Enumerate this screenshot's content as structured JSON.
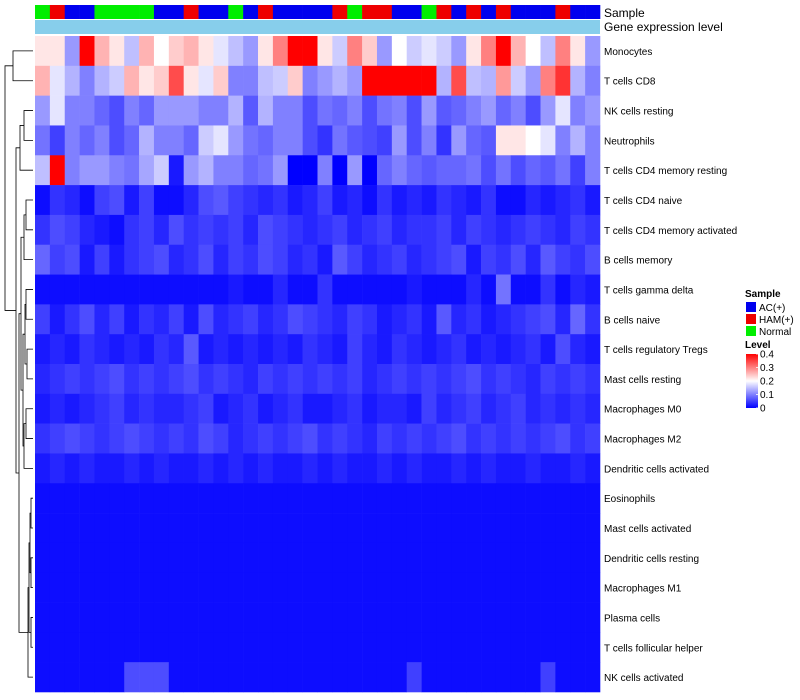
{
  "chart_data": {
    "type": "heatmap",
    "title": "",
    "annotation_labels": {
      "sample": "Sample",
      "gene_expression": "Gene expression level"
    },
    "rows": [
      "Monocytes",
      "T cells CD8",
      "NK cells resting",
      "Neutrophils",
      "T cells CD4 memory resting",
      "T cells CD4 naive",
      "T cells CD4 memory activated",
      "B cells memory",
      "T cells gamma delta",
      "B cells naive",
      "T cells regulatory  Tregs",
      "Mast cells resting",
      "Macrophages M0",
      "Macrophages M2",
      "Dendritic cells activated",
      "Eosinophils",
      "Mast cells activated",
      "Dendritic cells resting",
      "Macrophages M1",
      "Plasma cells",
      "T cells follicular helper",
      "NK cells activated"
    ],
    "sample_groups": [
      "N",
      "H",
      "A",
      "A",
      "N",
      "N",
      "N",
      "N",
      "A",
      "A",
      "H",
      "A",
      "A",
      "N",
      "A",
      "H",
      "A",
      "A",
      "A",
      "A",
      "H",
      "N",
      "H",
      "H",
      "A",
      "A",
      "N",
      "H",
      "A",
      "H",
      "A",
      "H",
      "A",
      "A",
      "A",
      "H",
      "A",
      "A"
    ],
    "values": [
      [
        0.22,
        0.22,
        0.12,
        0.4,
        0.26,
        0.22,
        0.15,
        0.26,
        0.2,
        0.24,
        0.26,
        0.22,
        0.18,
        0.15,
        0.12,
        0.22,
        0.3,
        0.4,
        0.4,
        0.22,
        0.16,
        0.3,
        0.24,
        0.12,
        0.2,
        0.16,
        0.18,
        0.16,
        0.12,
        0.22,
        0.3,
        0.4,
        0.26,
        0.2,
        0.15,
        0.3,
        0.22,
        0.12
      ],
      [
        0.26,
        0.18,
        0.14,
        0.1,
        0.14,
        0.16,
        0.26,
        0.22,
        0.24,
        0.34,
        0.22,
        0.18,
        0.24,
        0.1,
        0.1,
        0.15,
        0.16,
        0.24,
        0.1,
        0.12,
        0.14,
        0.12,
        0.4,
        0.4,
        0.4,
        0.4,
        0.4,
        0.14,
        0.34,
        0.15,
        0.14,
        0.28,
        0.16,
        0.12,
        0.3,
        0.36,
        0.14,
        0.1
      ],
      [
        0.12,
        0.18,
        0.1,
        0.1,
        0.08,
        0.06,
        0.1,
        0.08,
        0.12,
        0.12,
        0.12,
        0.1,
        0.1,
        0.14,
        0.07,
        0.14,
        0.1,
        0.1,
        0.06,
        0.09,
        0.08,
        0.1,
        0.06,
        0.09,
        0.1,
        0.06,
        0.12,
        0.07,
        0.08,
        0.1,
        0.12,
        0.08,
        0.1,
        0.06,
        0.12,
        0.18,
        0.1,
        0.12
      ],
      [
        0.09,
        0.05,
        0.1,
        0.08,
        0.1,
        0.06,
        0.08,
        0.14,
        0.1,
        0.1,
        0.08,
        0.16,
        0.18,
        0.12,
        0.09,
        0.08,
        0.1,
        0.1,
        0.06,
        0.04,
        0.09,
        0.07,
        0.06,
        0.05,
        0.12,
        0.06,
        0.1,
        0.04,
        0.12,
        0.08,
        0.07,
        0.22,
        0.22,
        0.2,
        0.18,
        0.1,
        0.14,
        0.1
      ],
      [
        0.15,
        0.4,
        0.1,
        0.12,
        0.12,
        0.1,
        0.09,
        0.13,
        0.16,
        0.02,
        0.12,
        0.14,
        0.1,
        0.1,
        0.08,
        0.09,
        0.12,
        0.0,
        0.0,
        0.1,
        0.0,
        0.12,
        0.0,
        0.08,
        0.1,
        0.08,
        0.07,
        0.08,
        0.08,
        0.09,
        0.06,
        0.09,
        0.06,
        0.08,
        0.07,
        0.09,
        0.05,
        0.1
      ],
      [
        0.01,
        0.04,
        0.03,
        0.01,
        0.05,
        0.06,
        0.02,
        0.05,
        0.01,
        0.01,
        0.03,
        0.06,
        0.07,
        0.05,
        0.04,
        0.03,
        0.04,
        0.02,
        0.03,
        0.05,
        0.02,
        0.03,
        0.01,
        0.04,
        0.02,
        0.03,
        0.02,
        0.04,
        0.03,
        0.02,
        0.04,
        0.01,
        0.01,
        0.03,
        0.02,
        0.03,
        0.04,
        0.02
      ],
      [
        0.04,
        0.06,
        0.05,
        0.03,
        0.02,
        0.01,
        0.04,
        0.05,
        0.03,
        0.06,
        0.04,
        0.05,
        0.04,
        0.05,
        0.03,
        0.06,
        0.05,
        0.04,
        0.03,
        0.04,
        0.05,
        0.03,
        0.04,
        0.05,
        0.03,
        0.04,
        0.04,
        0.05,
        0.03,
        0.05,
        0.04,
        0.03,
        0.04,
        0.05,
        0.04,
        0.03,
        0.05,
        0.04
      ],
      [
        0.08,
        0.05,
        0.06,
        0.02,
        0.05,
        0.02,
        0.04,
        0.05,
        0.06,
        0.03,
        0.04,
        0.06,
        0.03,
        0.05,
        0.04,
        0.06,
        0.05,
        0.03,
        0.04,
        0.02,
        0.07,
        0.05,
        0.03,
        0.04,
        0.05,
        0.03,
        0.04,
        0.05,
        0.06,
        0.02,
        0.05,
        0.04,
        0.06,
        0.03,
        0.07,
        0.05,
        0.04,
        0.06
      ],
      [
        0.01,
        0.01,
        0.01,
        0.01,
        0.01,
        0.01,
        0.01,
        0.01,
        0.01,
        0.01,
        0.01,
        0.01,
        0.01,
        0.02,
        0.01,
        0.01,
        0.03,
        0.01,
        0.01,
        0.04,
        0.01,
        0.01,
        0.01,
        0.01,
        0.01,
        0.02,
        0.01,
        0.01,
        0.01,
        0.03,
        0.01,
        0.09,
        0.01,
        0.01,
        0.04,
        0.01,
        0.03,
        0.02
      ],
      [
        0.05,
        0.02,
        0.04,
        0.06,
        0.03,
        0.05,
        0.02,
        0.04,
        0.03,
        0.05,
        0.02,
        0.06,
        0.03,
        0.04,
        0.05,
        0.03,
        0.04,
        0.06,
        0.05,
        0.04,
        0.03,
        0.05,
        0.04,
        0.02,
        0.03,
        0.04,
        0.02,
        0.07,
        0.03,
        0.04,
        0.02,
        0.03,
        0.04,
        0.05,
        0.06,
        0.03,
        0.08,
        0.04
      ],
      [
        0.02,
        0.03,
        0.02,
        0.04,
        0.03,
        0.02,
        0.03,
        0.02,
        0.04,
        0.03,
        0.07,
        0.02,
        0.03,
        0.02,
        0.03,
        0.02,
        0.03,
        0.02,
        0.04,
        0.03,
        0.02,
        0.05,
        0.03,
        0.02,
        0.04,
        0.03,
        0.02,
        0.03,
        0.04,
        0.02,
        0.03,
        0.02,
        0.03,
        0.04,
        0.02,
        0.06,
        0.03,
        0.02
      ],
      [
        0.03,
        0.04,
        0.05,
        0.04,
        0.05,
        0.06,
        0.04,
        0.05,
        0.04,
        0.05,
        0.06,
        0.04,
        0.05,
        0.04,
        0.03,
        0.05,
        0.04,
        0.05,
        0.04,
        0.05,
        0.04,
        0.05,
        0.03,
        0.04,
        0.05,
        0.04,
        0.05,
        0.04,
        0.05,
        0.06,
        0.04,
        0.05,
        0.04,
        0.03,
        0.05,
        0.04,
        0.05,
        0.04
      ],
      [
        0.02,
        0.03,
        0.02,
        0.03,
        0.04,
        0.05,
        0.03,
        0.04,
        0.03,
        0.03,
        0.04,
        0.05,
        0.02,
        0.03,
        0.04,
        0.02,
        0.03,
        0.04,
        0.02,
        0.02,
        0.03,
        0.04,
        0.02,
        0.03,
        0.03,
        0.02,
        0.05,
        0.03,
        0.04,
        0.05,
        0.03,
        0.04,
        0.05,
        0.03,
        0.04,
        0.03,
        0.04,
        0.03
      ],
      [
        0.04,
        0.05,
        0.06,
        0.05,
        0.04,
        0.05,
        0.06,
        0.05,
        0.04,
        0.05,
        0.04,
        0.06,
        0.05,
        0.03,
        0.04,
        0.05,
        0.04,
        0.05,
        0.06,
        0.04,
        0.05,
        0.04,
        0.03,
        0.05,
        0.04,
        0.05,
        0.04,
        0.05,
        0.06,
        0.04,
        0.05,
        0.04,
        0.05,
        0.04,
        0.05,
        0.06,
        0.04,
        0.05
      ],
      [
        0.02,
        0.03,
        0.02,
        0.03,
        0.02,
        0.02,
        0.03,
        0.02,
        0.03,
        0.02,
        0.02,
        0.03,
        0.02,
        0.03,
        0.02,
        0.03,
        0.02,
        0.02,
        0.03,
        0.02,
        0.03,
        0.02,
        0.02,
        0.03,
        0.02,
        0.03,
        0.02,
        0.02,
        0.03,
        0.02,
        0.03,
        0.02,
        0.02,
        0.03,
        0.02,
        0.02,
        0.03,
        0.02
      ],
      [
        0.01,
        0.01,
        0.01,
        0.01,
        0.01,
        0.01,
        0.01,
        0.01,
        0.01,
        0.01,
        0.01,
        0.01,
        0.01,
        0.01,
        0.01,
        0.01,
        0.01,
        0.01,
        0.01,
        0.01,
        0.01,
        0.01,
        0.01,
        0.01,
        0.01,
        0.01,
        0.01,
        0.01,
        0.01,
        0.01,
        0.01,
        0.01,
        0.01,
        0.01,
        0.01,
        0.01,
        0.01,
        0.01
      ],
      [
        0.01,
        0.01,
        0.01,
        0.01,
        0.01,
        0.01,
        0.01,
        0.01,
        0.01,
        0.01,
        0.01,
        0.01,
        0.01,
        0.01,
        0.01,
        0.01,
        0.01,
        0.01,
        0.01,
        0.01,
        0.01,
        0.01,
        0.01,
        0.01,
        0.01,
        0.01,
        0.01,
        0.01,
        0.01,
        0.01,
        0.01,
        0.01,
        0.01,
        0.01,
        0.01,
        0.01,
        0.01,
        0.01
      ],
      [
        0.01,
        0.01,
        0.01,
        0.01,
        0.01,
        0.01,
        0.01,
        0.01,
        0.01,
        0.01,
        0.01,
        0.01,
        0.01,
        0.01,
        0.01,
        0.01,
        0.01,
        0.01,
        0.01,
        0.01,
        0.01,
        0.01,
        0.01,
        0.01,
        0.01,
        0.01,
        0.01,
        0.01,
        0.01,
        0.01,
        0.01,
        0.01,
        0.01,
        0.01,
        0.01,
        0.01,
        0.01,
        0.01
      ],
      [
        0.01,
        0.01,
        0.01,
        0.01,
        0.01,
        0.01,
        0.01,
        0.01,
        0.01,
        0.01,
        0.01,
        0.01,
        0.01,
        0.01,
        0.01,
        0.01,
        0.01,
        0.01,
        0.01,
        0.01,
        0.01,
        0.01,
        0.01,
        0.01,
        0.01,
        0.01,
        0.01,
        0.01,
        0.01,
        0.01,
        0.01,
        0.01,
        0.01,
        0.01,
        0.01,
        0.01,
        0.01,
        0.01
      ],
      [
        0.01,
        0.01,
        0.01,
        0.01,
        0.01,
        0.01,
        0.01,
        0.01,
        0.01,
        0.01,
        0.01,
        0.01,
        0.01,
        0.01,
        0.01,
        0.01,
        0.01,
        0.01,
        0.01,
        0.01,
        0.01,
        0.01,
        0.01,
        0.01,
        0.01,
        0.01,
        0.01,
        0.01,
        0.01,
        0.01,
        0.01,
        0.01,
        0.01,
        0.01,
        0.01,
        0.01,
        0.01,
        0.01
      ],
      [
        0.01,
        0.01,
        0.01,
        0.01,
        0.01,
        0.01,
        0.01,
        0.01,
        0.01,
        0.01,
        0.01,
        0.01,
        0.01,
        0.01,
        0.01,
        0.01,
        0.01,
        0.01,
        0.01,
        0.01,
        0.01,
        0.01,
        0.01,
        0.01,
        0.01,
        0.01,
        0.01,
        0.01,
        0.01,
        0.01,
        0.01,
        0.01,
        0.01,
        0.01,
        0.01,
        0.01,
        0.01,
        0.01
      ],
      [
        0.01,
        0.01,
        0.01,
        0.01,
        0.01,
        0.01,
        0.06,
        0.06,
        0.06,
        0.01,
        0.01,
        0.01,
        0.01,
        0.01,
        0.01,
        0.01,
        0.01,
        0.01,
        0.01,
        0.01,
        0.01,
        0.01,
        0.01,
        0.01,
        0.01,
        0.05,
        0.01,
        0.01,
        0.01,
        0.01,
        0.01,
        0.01,
        0.01,
        0.01,
        0.05,
        0.01,
        0.01,
        0.01
      ]
    ],
    "sample_legend": {
      "title": "Sample",
      "entries": [
        {
          "key": "A",
          "label": "AC(+)",
          "color": "#0000ee"
        },
        {
          "key": "H",
          "label": "HAM(+)",
          "color": "#ee0000"
        },
        {
          "key": "N",
          "label": "Normal",
          "color": "#00ee00"
        }
      ]
    },
    "level_legend": {
      "title": "Level",
      "range": [
        0,
        0.4
      ],
      "ticks": [
        "0.4",
        "0.3",
        "0.2",
        "0.1",
        "0"
      ],
      "colors": {
        "low": "#0000ff",
        "mid": "#ffffff",
        "high": "#ff0000"
      },
      "midpoint": 0.2
    },
    "gene_expression_color": "#87ceeb",
    "dendrogram": "row clustering"
  }
}
